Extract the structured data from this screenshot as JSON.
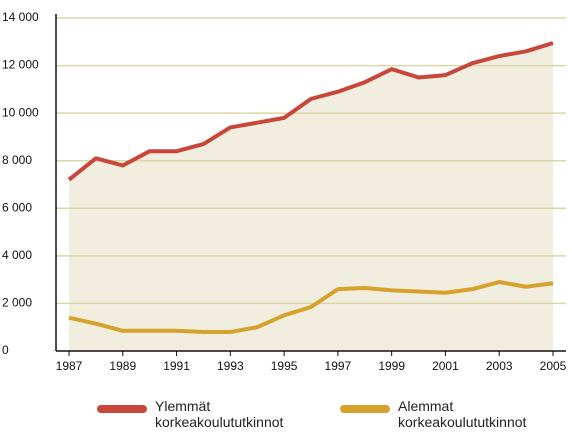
{
  "chart_data": {
    "type": "line",
    "x": [
      1987,
      1988,
      1989,
      1990,
      1991,
      1992,
      1993,
      1994,
      1995,
      1996,
      1997,
      1998,
      1999,
      2000,
      2001,
      2002,
      2003,
      2004,
      2005
    ],
    "series": [
      {
        "name": "Ylemmät korkeakoulututkinnot",
        "color": "#c9463a",
        "area_color": "#f1eedf",
        "values": [
          7200,
          8100,
          7800,
          8400,
          8400,
          8700,
          9400,
          9600,
          9800,
          10600,
          10900,
          11300,
          11850,
          11500,
          11600,
          12100,
          12400,
          12600,
          12950
        ]
      },
      {
        "name": "Alemmat korkeakoulututkinnot",
        "color": "#d6a22c",
        "values": [
          1400,
          1150,
          850,
          850,
          850,
          800,
          800,
          1000,
          1500,
          1850,
          2600,
          2650,
          2550,
          2500,
          2450,
          2600,
          2900,
          2700,
          2850
        ]
      }
    ],
    "xlim": [
      1987,
      2005
    ],
    "xticks": [
      1987,
      1989,
      1991,
      1993,
      1995,
      1997,
      1999,
      2001,
      2003,
      2005
    ],
    "ylim": [
      0,
      14000
    ],
    "yticks": [
      0,
      {
        "value": 2000,
        "label": "2 000"
      },
      {
        "value": 4000,
        "label": "4 000"
      },
      {
        "value": 6000,
        "label": "6 000"
      },
      {
        "value": 8000,
        "label": "8 000"
      },
      {
        "value": 10000,
        "label": "10 000"
      },
      {
        "value": 12000,
        "label": "12 000"
      },
      {
        "value": 14000,
        "label": "14 000"
      }
    ],
    "grid": true,
    "grid_color": "#dcd6a6"
  }
}
